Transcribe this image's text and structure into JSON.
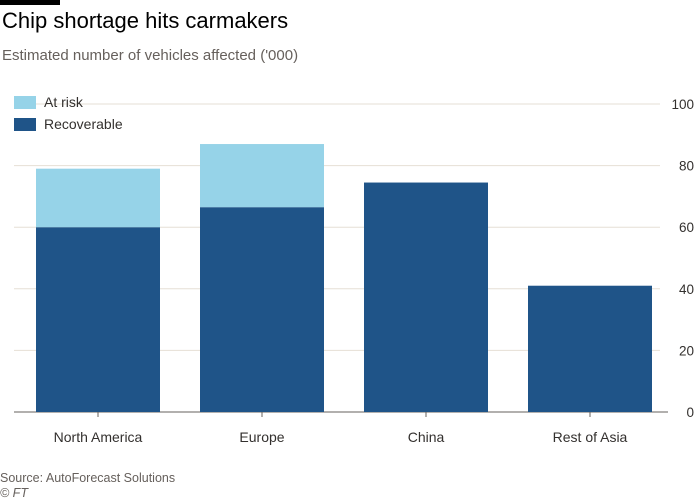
{
  "header": {
    "title": "Chip shortage hits carmakers",
    "subtitle": "Estimated number of vehicles affected ('000)"
  },
  "footer": {
    "source": "Source: AutoForecast Solutions",
    "credit": "© FT"
  },
  "colors": {
    "at_risk": "#96d3e8",
    "recoverable": "#1f5488",
    "grid": "#e6dfd5",
    "axis": "#66605c",
    "tick_text": "#33302e"
  },
  "chart_data": {
    "type": "bar",
    "stacked": true,
    "title": "Chip shortage hits carmakers",
    "subtitle": "Estimated number of vehicles affected ('000)",
    "categories": [
      "North America",
      "Europe",
      "China",
      "Rest of Asia"
    ],
    "series": [
      {
        "name": "Recoverable",
        "values": [
          60,
          66.5,
          74.5,
          41
        ]
      },
      {
        "name": "At risk",
        "values": [
          19,
          20.5,
          0,
          0
        ]
      }
    ],
    "legend": [
      "At risk",
      "Recoverable"
    ],
    "legend_position": "top-left",
    "ylim": [
      0,
      100
    ],
    "yticks": [
      0,
      20,
      40,
      60,
      80,
      100
    ],
    "y_axis_side": "right",
    "xlabel": "",
    "ylabel": ""
  }
}
